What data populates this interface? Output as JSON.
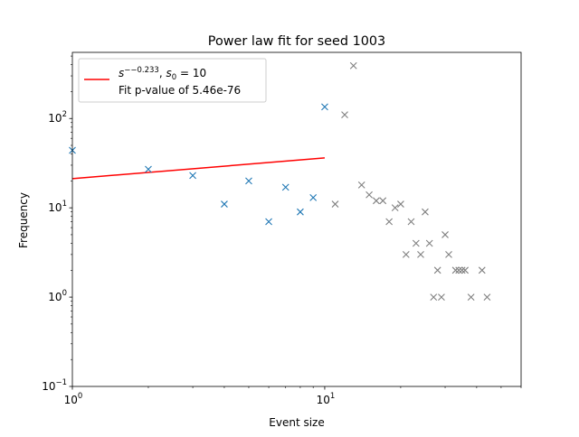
{
  "chart_data": {
    "type": "scatter",
    "title": "Power law fit for seed 1003",
    "xlabel": "Event size",
    "ylabel": "Frequency",
    "xscale": "log",
    "yscale": "log",
    "xlim": [
      1,
      60
    ],
    "ylim": [
      0.1,
      550
    ],
    "grid": false,
    "legend_position": "upper-left",
    "x_ticks": [
      {
        "value": 1,
        "label": "10^0"
      },
      {
        "value": 10,
        "label": "10^1"
      }
    ],
    "y_ticks": [
      {
        "value": 0.1,
        "label": "10^-1"
      },
      {
        "value": 1,
        "label": "10^0"
      },
      {
        "value": 10,
        "label": "10^1"
      },
      {
        "value": 100,
        "label": "10^2"
      }
    ],
    "fit_series": {
      "legend_label_main": "s^{--0.233}, s_0 = 10",
      "legend_label_pvalue": "Fit p-value of 5.46e-76",
      "color": "#ff0000",
      "x": [
        1,
        10
      ],
      "y": [
        21.2,
        36.2
      ]
    },
    "fitted_points": {
      "marker": "x",
      "color": "#1f77b4",
      "x": [
        1,
        2,
        3,
        4,
        5,
        6,
        7,
        8,
        9,
        10
      ],
      "y": [
        44,
        27,
        23,
        11,
        20,
        7,
        17,
        9,
        13,
        135
      ]
    },
    "tail_points": {
      "marker": "x",
      "color": "#808080",
      "x": [
        11,
        12,
        13,
        14,
        15,
        16,
        17,
        18,
        19,
        20,
        21,
        22,
        23,
        24,
        25,
        26,
        27,
        28,
        29,
        30,
        31,
        33,
        34,
        35,
        36,
        38,
        42,
        44
      ],
      "y": [
        11,
        110,
        390,
        18,
        14,
        12,
        12,
        7,
        10,
        11,
        3,
        7,
        4,
        3,
        9,
        4,
        1,
        2,
        1,
        5,
        3,
        2,
        2,
        2,
        2,
        1,
        2,
        1
      ]
    }
  }
}
